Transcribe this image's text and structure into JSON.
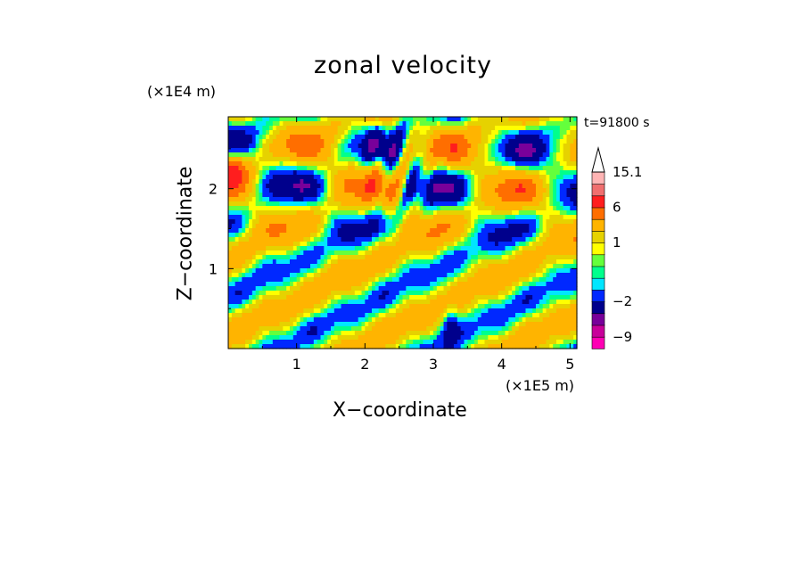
{
  "chart_data": {
    "type": "heatmap",
    "title": "zonal velocity",
    "xlabel": "X−coordinate",
    "ylabel": "Z−coordinate",
    "x_unit": "(×1E5 m)",
    "y_unit": "(×1E4 m)",
    "time_label": "t=91800 s",
    "xlim": [
      0,
      5.1
    ],
    "ylim": [
      0,
      2.9
    ],
    "x_ticks": [
      "1",
      "2",
      "3",
      "4",
      "5"
    ],
    "y_ticks": [
      "1",
      "2"
    ],
    "colorbar": {
      "labels": [
        "15.1",
        "6",
        "1",
        "−2",
        "−9"
      ],
      "levels": [
        -12,
        -9,
        -6,
        -4,
        -2,
        -1,
        -0.5,
        0,
        0.5,
        1,
        2,
        4,
        6,
        9,
        12,
        15.1
      ],
      "colors": [
        "#ff00b4",
        "#c8009a",
        "#78009a",
        "#00008c",
        "#0028ff",
        "#00e6ff",
        "#00ff8c",
        "#64ff3c",
        "#ffff00",
        "#e6d200",
        "#ffb400",
        "#ff6e00",
        "#ff1e1e",
        "#f06e6e",
        "#ffb4b4"
      ],
      "extend_max": true
    }
  }
}
